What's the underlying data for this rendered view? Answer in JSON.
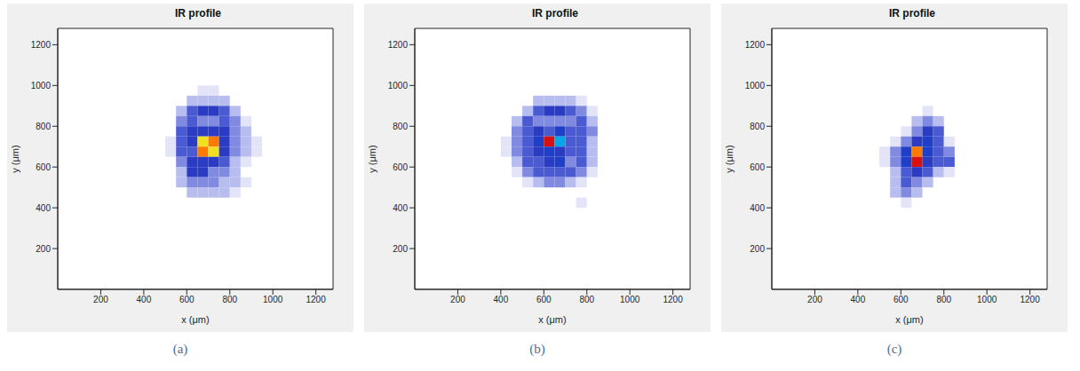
{
  "chart_data": [
    {
      "type": "heatmap",
      "title": "IR profile",
      "label": "(a)",
      "x_label": "x (μm)",
      "y_label": "y (μm)",
      "xlim": [
        0,
        1280
      ],
      "ylim": [
        0,
        1280
      ],
      "xticks": [
        200,
        400,
        600,
        800,
        1000,
        1200
      ],
      "yticks": [
        200,
        400,
        600,
        800,
        1000,
        1200
      ],
      "cell_x": [
        400,
        450,
        500,
        550,
        600,
        650,
        700,
        750,
        800,
        850,
        900,
        950,
        1000
      ],
      "cell_y": [
        1000,
        950,
        900,
        850,
        800,
        750,
        700,
        650,
        600,
        550,
        500,
        450,
        400
      ],
      "cells": [
        [
          0,
          0,
          0,
          0,
          0,
          0.05,
          0.05,
          0,
          0,
          0,
          0,
          0
        ],
        [
          0,
          0,
          0,
          0,
          0.1,
          0.15,
          0.15,
          0.1,
          0,
          0,
          0,
          0
        ],
        [
          0,
          0,
          0,
          0.1,
          0.3,
          0.4,
          0.4,
          0.35,
          0.15,
          0,
          0,
          0
        ],
        [
          0,
          0,
          0,
          0.2,
          0.35,
          0.2,
          0.2,
          0.3,
          0.2,
          0.05,
          0,
          0
        ],
        [
          0,
          0,
          0,
          0.35,
          0.45,
          0.4,
          0.4,
          0.45,
          0.25,
          0.1,
          0,
          0
        ],
        [
          0,
          0,
          0.05,
          0.35,
          0.4,
          0.85,
          0.9,
          0.4,
          0.2,
          0.1,
          0.05,
          0
        ],
        [
          0,
          0,
          0.05,
          0.3,
          0.35,
          0.9,
          0.85,
          0.45,
          0.2,
          0.1,
          0.05,
          0
        ],
        [
          0,
          0,
          0,
          0.2,
          0.4,
          0.45,
          0.45,
          0.35,
          0.15,
          0.05,
          0,
          0
        ],
        [
          0,
          0,
          0,
          0.15,
          0.45,
          0.4,
          0.25,
          0.2,
          0.1,
          0,
          0,
          0
        ],
        [
          0,
          0,
          0,
          0.1,
          0.2,
          0.2,
          0.2,
          0.15,
          0.1,
          0.05,
          0,
          0
        ],
        [
          0,
          0,
          0,
          0,
          0.1,
          0.15,
          0.15,
          0.1,
          0.05,
          0,
          0,
          0
        ],
        [
          0,
          0,
          0,
          0,
          0,
          0,
          0,
          0,
          0,
          0,
          0,
          0
        ]
      ]
    },
    {
      "type": "heatmap",
      "title": "IR profile",
      "label": "(b)",
      "x_label": "x (μm)",
      "y_label": "y (μm)",
      "xlim": [
        0,
        1280
      ],
      "ylim": [
        0,
        1280
      ],
      "xticks": [
        200,
        400,
        600,
        800,
        1000,
        1200
      ],
      "yticks": [
        200,
        400,
        600,
        800,
        1000,
        1200
      ],
      "cell_x": [
        400,
        450,
        500,
        550,
        600,
        650,
        700,
        750,
        800,
        850,
        900,
        950,
        1000
      ],
      "cell_y": [
        1000,
        950,
        900,
        850,
        800,
        750,
        700,
        650,
        600,
        550,
        500,
        450,
        400
      ],
      "cells": [
        [
          0,
          0,
          0,
          0,
          0,
          0,
          0,
          0,
          0,
          0,
          0,
          0
        ],
        [
          0,
          0,
          0,
          0.1,
          0.15,
          0.15,
          0.1,
          0.05,
          0,
          0,
          0,
          0
        ],
        [
          0,
          0,
          0.15,
          0.35,
          0.4,
          0.4,
          0.35,
          0.2,
          0.05,
          0,
          0,
          0
        ],
        [
          0,
          0.1,
          0.3,
          0.2,
          0.2,
          0.2,
          0.25,
          0.3,
          0.1,
          0,
          0,
          0
        ],
        [
          0,
          0.2,
          0.3,
          0.45,
          0.35,
          0.5,
          0.35,
          0.3,
          0.2,
          0,
          0,
          0
        ],
        [
          0.05,
          0.25,
          0.35,
          0.5,
          1.0,
          0.6,
          0.35,
          0.35,
          0.15,
          0,
          0,
          0
        ],
        [
          0.05,
          0.25,
          0.3,
          0.45,
          0.55,
          0.4,
          0.3,
          0.3,
          0.15,
          0,
          0,
          0
        ],
        [
          0,
          0.15,
          0.3,
          0.3,
          0.45,
          0.5,
          0.25,
          0.3,
          0.1,
          0,
          0,
          0
        ],
        [
          0,
          0.05,
          0.2,
          0.3,
          0.3,
          0.3,
          0.3,
          0.2,
          0.05,
          0,
          0,
          0
        ],
        [
          0,
          0,
          0.05,
          0.15,
          0.2,
          0.2,
          0.15,
          0.05,
          0,
          0,
          0,
          0
        ],
        [
          0,
          0,
          0,
          0,
          0,
          0,
          0,
          0,
          0,
          0,
          0,
          0
        ],
        [
          0,
          0,
          0,
          0,
          0,
          0,
          0,
          0.05,
          0,
          0,
          0,
          0
        ]
      ]
    },
    {
      "type": "heatmap",
      "title": "IR profile",
      "label": "(c)",
      "x_label": "x (μm)",
      "y_label": "y (μm)",
      "xlim": [
        0,
        1280
      ],
      "ylim": [
        0,
        1280
      ],
      "xticks": [
        200,
        400,
        600,
        800,
        1000,
        1200
      ],
      "yticks": [
        200,
        400,
        600,
        800,
        1000,
        1200
      ],
      "cell_x": [
        400,
        450,
        500,
        550,
        600,
        650,
        700,
        750,
        800,
        850,
        900,
        950,
        1000
      ],
      "cell_y": [
        1000,
        950,
        900,
        850,
        800,
        750,
        700,
        650,
        600,
        550,
        500,
        450,
        400
      ],
      "cells": [
        [
          0,
          0,
          0,
          0,
          0,
          0,
          0,
          0,
          0,
          0,
          0,
          0
        ],
        [
          0,
          0,
          0,
          0,
          0,
          0,
          0,
          0,
          0,
          0,
          0,
          0
        ],
        [
          0,
          0,
          0,
          0,
          0,
          0,
          0.05,
          0,
          0,
          0,
          0,
          0
        ],
        [
          0,
          0,
          0,
          0,
          0,
          0.1,
          0.2,
          0.1,
          0,
          0,
          0,
          0
        ],
        [
          0,
          0,
          0,
          0,
          0.05,
          0.2,
          0.4,
          0.3,
          0,
          0,
          0,
          0
        ],
        [
          0,
          0,
          0,
          0.05,
          0.2,
          0.4,
          0.5,
          0.3,
          0.05,
          0,
          0,
          0
        ],
        [
          0,
          0,
          0.05,
          0.2,
          0.55,
          0.9,
          0.55,
          0.3,
          0.2,
          0,
          0,
          0
        ],
        [
          0,
          0,
          0.05,
          0.25,
          0.5,
          0.95,
          0.45,
          0.35,
          0.3,
          0,
          0,
          0
        ],
        [
          0,
          0,
          0,
          0.1,
          0.3,
          0.4,
          0.3,
          0.15,
          0.05,
          0,
          0,
          0
        ],
        [
          0,
          0,
          0,
          0.15,
          0.3,
          0.2,
          0.1,
          0,
          0,
          0,
          0,
          0
        ],
        [
          0,
          0,
          0,
          0.15,
          0.25,
          0.1,
          0,
          0,
          0,
          0,
          0,
          0
        ],
        [
          0,
          0,
          0,
          0,
          0.05,
          0,
          0,
          0,
          0,
          0,
          0,
          0
        ]
      ]
    }
  ]
}
